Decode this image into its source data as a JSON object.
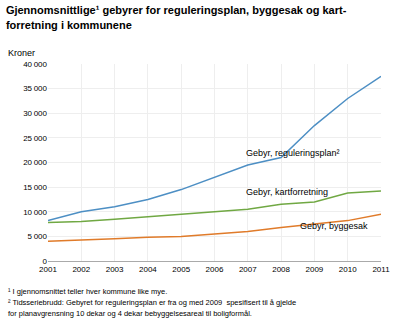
{
  "chart_data": {
    "type": "line",
    "title": [
      "Gjennomsnittlige¹ gebyrer for reguleringsplan, byggesak og kart-",
      "forretning i kommunene"
    ],
    "ylabel": "Kroner",
    "x": [
      2001,
      2002,
      2003,
      2004,
      2005,
      2006,
      2007,
      2008,
      2009,
      2010,
      2011
    ],
    "series": [
      {
        "color": "#4d8fc4",
        "values": [
          8200,
          10000,
          11000,
          12500,
          14500,
          17000,
          19500,
          21000,
          27500,
          33000,
          37500
        ]
      },
      {
        "color": "#70a843",
        "values": [
          7800,
          8000,
          8500,
          9000,
          9500,
          10000,
          10500,
          11500,
          12000,
          13800,
          14200
        ]
      },
      {
        "color": "#e07b2a",
        "values": [
          4000,
          4200,
          4500,
          4800,
          5000,
          5500,
          6000,
          6800,
          7500,
          8200,
          9500
        ]
      }
    ],
    "xlim": [
      2001,
      2011
    ],
    "xticks": [
      2001,
      2002,
      2003,
      2004,
      2005,
      2006,
      2007,
      2008,
      2009,
      2010,
      2011
    ],
    "ylim": [
      0,
      40000
    ],
    "yticks": [
      0,
      {
        "value": 5000,
        "label": "5 000"
      },
      {
        "value": 10000,
        "label": "10 000"
      },
      {
        "value": 15000,
        "label": "15 000"
      },
      {
        "value": 20000,
        "label": "20 000"
      },
      {
        "value": 25000,
        "label": "25 000"
      },
      {
        "value": 30000,
        "label": "30 000"
      },
      {
        "value": 35000,
        "label": "35 000"
      },
      {
        "value": 40000,
        "label": "40 000"
      }
    ],
    "grid": true,
    "annotations": [
      {
        "text": "Gebyr, reguleringsplan²",
        "x": 2006.9,
        "y": 20500
      },
      {
        "text": "Gebyr, kartforretning",
        "x": 2006.9,
        "y": 12500
      },
      {
        "text": "Gebyr, byggesak",
        "x": 2008.5,
        "y": 5700
      }
    ],
    "footnotes": [
      "¹ I gjennomsnittet teller hver kommune like mye.",
      "² Tidsseriebrudd: Gebyret for reguleringsplan er fra og med 2009  spesifisert til å gjelde",
      "for planavgrensning 10 dekar og 4 dekar bebyggelsesareal til boligformål."
    ]
  }
}
